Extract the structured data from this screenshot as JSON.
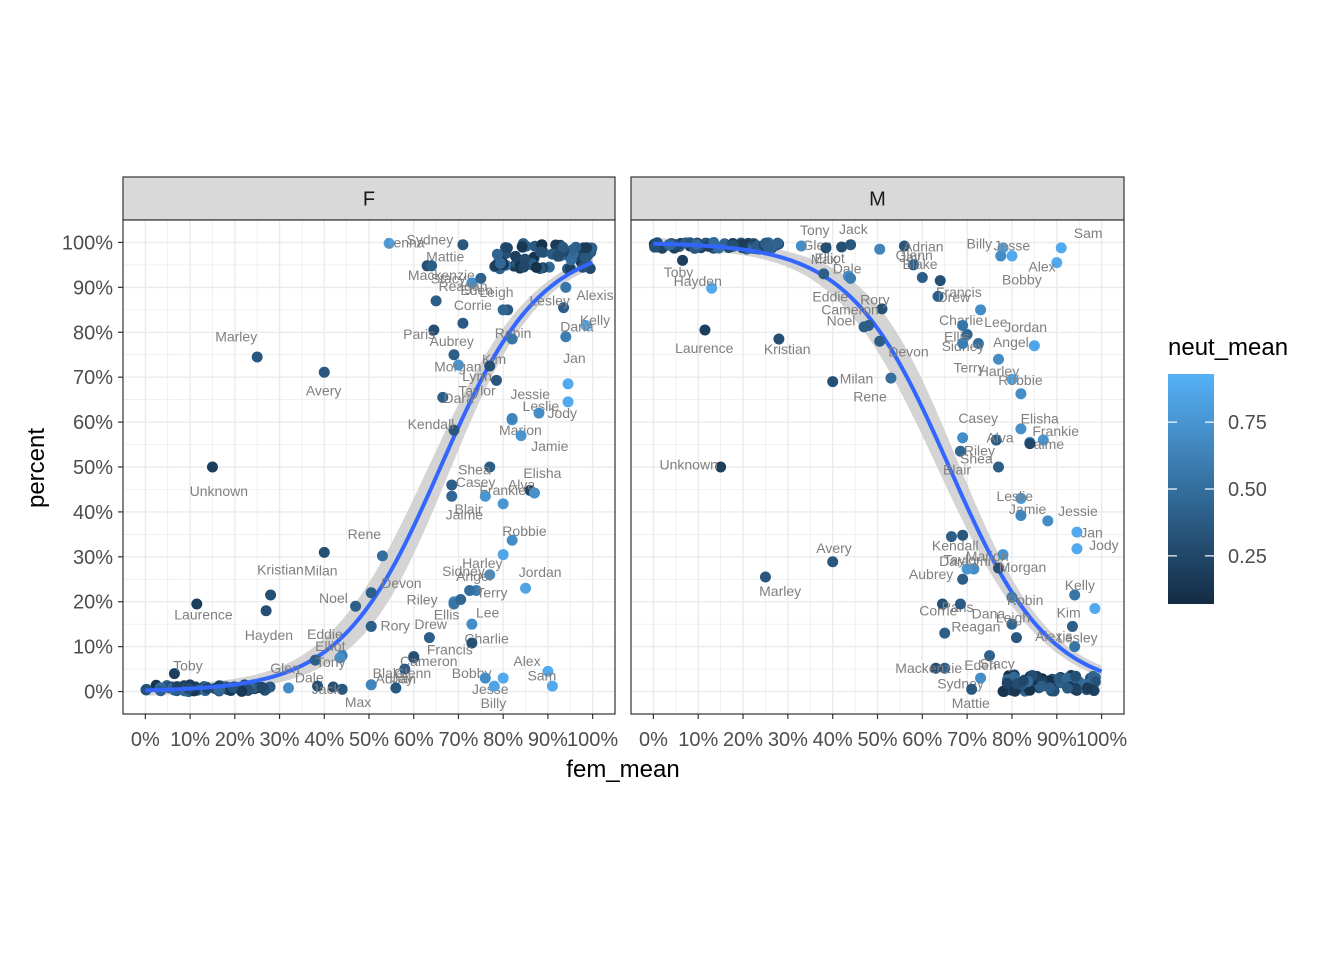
{
  "chart_data": {
    "type": "scatter",
    "x_label": "fem_mean",
    "y_label": "percent",
    "legend_title": "neut_mean",
    "legend_ticks": [
      0.25,
      0.5,
      0.75
    ],
    "legend_tick_labels": [
      "0.25",
      "0.50",
      "0.75"
    ],
    "color_range": [
      0.07,
      0.93
    ],
    "color_low": "#132B43",
    "color_high": "#56B1F7",
    "smooth_color": "#3366FF",
    "ribbon_color": "#cccccc",
    "x_ticks": [
      0,
      0.1,
      0.2,
      0.3,
      0.4,
      0.5,
      0.6,
      0.7,
      0.8,
      0.9,
      1.0
    ],
    "x_tick_labels": [
      "0%",
      "10%",
      "20%",
      "30%",
      "40%",
      "50%",
      "60%",
      "70%",
      "80%",
      "90%",
      "100%"
    ],
    "y_ticks": [
      0,
      0.1,
      0.2,
      0.3,
      0.4,
      0.5,
      0.6,
      0.7,
      0.8,
      0.9,
      1.0
    ],
    "y_tick_labels": [
      "0%",
      "10%",
      "20%",
      "30%",
      "40%",
      "50%",
      "60%",
      "70%",
      "80%",
      "90%",
      "100%"
    ],
    "xlim": [
      -0.05,
      1.05
    ],
    "ylim": [
      -0.05,
      1.05
    ],
    "grid": true,
    "legend_position": "right",
    "panels": [
      {
        "name": "F",
        "labeled_points": [
          {
            "name": "Lenna",
            "x": 0.545,
            "y": 0.998,
            "c": 0.82
          },
          {
            "name": "Mattie",
            "x": 0.71,
            "y": 0.995,
            "c": 0.35
          },
          {
            "name": "Sydney",
            "x": 0.63,
            "y": 0.948,
            "c": 0.3
          },
          {
            "name": "Mackenzie",
            "x": 0.64,
            "y": 0.948,
            "c": 0.4
          },
          {
            "name": "Stacy",
            "x": 0.73,
            "y": 0.91,
            "c": 0.7
          },
          {
            "name": "Reagan",
            "x": 0.65,
            "y": 0.87,
            "c": 0.4
          },
          {
            "name": "Eden",
            "x": 0.75,
            "y": 0.92,
            "c": 0.42
          },
          {
            "name": "Leigh",
            "x": 0.81,
            "y": 0.85,
            "c": 0.35
          },
          {
            "name": "Alexis",
            "x": 0.94,
            "y": 0.9,
            "c": 0.55
          },
          {
            "name": "Paris",
            "x": 0.645,
            "y": 0.805,
            "c": 0.3
          },
          {
            "name": "Corrie",
            "x": 0.71,
            "y": 0.82,
            "c": 0.38
          },
          {
            "name": "Robin",
            "x": 0.8,
            "y": 0.85,
            "c": 0.45
          },
          {
            "name": "Lesley",
            "x": 0.935,
            "y": 0.855,
            "c": 0.4
          },
          {
            "name": "Kelly",
            "x": 0.985,
            "y": 0.815,
            "c": 0.88
          },
          {
            "name": "Kim",
            "x": 0.82,
            "y": 0.785,
            "c": 0.55
          },
          {
            "name": "Aubrey",
            "x": 0.69,
            "y": 0.75,
            "c": 0.4
          },
          {
            "name": "Lynn",
            "x": 0.7,
            "y": 0.727,
            "c": 0.75
          },
          {
            "name": "Morgan",
            "x": 0.77,
            "y": 0.725,
            "c": 0.3
          },
          {
            "name": "Dana",
            "x": 0.94,
            "y": 0.79,
            "c": 0.6
          },
          {
            "name": "Avery",
            "x": 0.4,
            "y": 0.711,
            "c": 0.35
          },
          {
            "name": "Marley",
            "x": 0.25,
            "y": 0.745,
            "c": 0.35
          },
          {
            "name": "Dara",
            "x": 0.665,
            "y": 0.655,
            "c": 0.4
          },
          {
            "name": "Taylor",
            "x": 0.785,
            "y": 0.693,
            "c": 0.35
          },
          {
            "name": "Jan",
            "x": 0.945,
            "y": 0.685,
            "c": 0.88
          },
          {
            "name": "Marion",
            "x": 0.82,
            "y": 0.605,
            "c": 0.75
          },
          {
            "name": "Kendall",
            "x": 0.69,
            "y": 0.582,
            "c": 0.35
          },
          {
            "name": "Leslie",
            "x": 0.82,
            "y": 0.608,
            "c": 0.65
          },
          {
            "name": "Jody",
            "x": 0.945,
            "y": 0.645,
            "c": 0.88
          },
          {
            "name": "Jessie",
            "x": 0.88,
            "y": 0.62,
            "c": 0.7
          },
          {
            "name": "Jamie",
            "x": 0.84,
            "y": 0.57,
            "c": 0.75
          },
          {
            "name": "Shea",
            "x": 0.77,
            "y": 0.5,
            "c": 0.4
          },
          {
            "name": "Elisha",
            "x": 0.86,
            "y": 0.448,
            "c": 0.25
          },
          {
            "name": "Unknown",
            "x": 0.15,
            "y": 0.5,
            "c": 0.2
          },
          {
            "name": "Alva",
            "x": 0.87,
            "y": 0.442,
            "c": 0.72
          },
          {
            "name": "Casey",
            "x": 0.685,
            "y": 0.46,
            "c": 0.4
          },
          {
            "name": "Jaime",
            "x": 0.76,
            "y": 0.435,
            "c": 0.75
          },
          {
            "name": "Frankie",
            "x": 0.8,
            "y": 0.418,
            "c": 0.75
          },
          {
            "name": "Blair",
            "x": 0.685,
            "y": 0.435,
            "c": 0.45
          },
          {
            "name": "Riley",
            "x": 0.69,
            "y": 0.2,
            "c": 0.7
          },
          {
            "name": "Robbie",
            "x": 0.82,
            "y": 0.337,
            "c": 0.7
          },
          {
            "name": "Milan",
            "x": 0.4,
            "y": 0.31,
            "c": 0.3
          },
          {
            "name": "Rene",
            "x": 0.53,
            "y": 0.302,
            "c": 0.5
          },
          {
            "name": "Terry",
            "x": 0.74,
            "y": 0.225,
            "c": 0.6
          },
          {
            "name": "Harley",
            "x": 0.8,
            "y": 0.305,
            "c": 0.85
          },
          {
            "name": "Kristian",
            "x": 0.28,
            "y": 0.215,
            "c": 0.3
          },
          {
            "name": "Laurence",
            "x": 0.115,
            "y": 0.195,
            "c": 0.2
          },
          {
            "name": "Noel",
            "x": 0.47,
            "y": 0.19,
            "c": 0.4
          },
          {
            "name": "Devon",
            "x": 0.505,
            "y": 0.22,
            "c": 0.4
          },
          {
            "name": "Ellis",
            "x": 0.69,
            "y": 0.195,
            "c": 0.55
          },
          {
            "name": "Sidney",
            "x": 0.725,
            "y": 0.225,
            "c": 0.5
          },
          {
            "name": "Lee",
            "x": 0.705,
            "y": 0.205,
            "c": 0.45
          },
          {
            "name": "Angel",
            "x": 0.77,
            "y": 0.26,
            "c": 0.7
          },
          {
            "name": "Jordan",
            "x": 0.85,
            "y": 0.23,
            "c": 0.85
          },
          {
            "name": "Hayden",
            "x": 0.27,
            "y": 0.18,
            "c": 0.3
          },
          {
            "name": "Elliot",
            "x": 0.44,
            "y": 0.08,
            "c": 0.6
          },
          {
            "name": "Rory",
            "x": 0.505,
            "y": 0.145,
            "c": 0.4
          },
          {
            "name": "Blake",
            "x": 0.6,
            "y": 0.078,
            "c": 0.4
          },
          {
            "name": "Drew",
            "x": 0.635,
            "y": 0.12,
            "c": 0.4
          },
          {
            "name": "Charlie",
            "x": 0.73,
            "y": 0.15,
            "c": 0.7
          },
          {
            "name": "Bobby",
            "x": 0.8,
            "y": 0.03,
            "c": 0.88
          },
          {
            "name": "Toby",
            "x": 0.065,
            "y": 0.04,
            "c": 0.2
          },
          {
            "name": "Dale",
            "x": 0.38,
            "y": 0.07,
            "c": 0.4
          },
          {
            "name": "Eddie",
            "x": 0.435,
            "y": 0.075,
            "c": 0.7
          },
          {
            "name": "Cameron",
            "x": 0.6,
            "y": 0.075,
            "c": 0.3
          },
          {
            "name": "Francis",
            "x": 0.73,
            "y": 0.108,
            "c": 0.3
          },
          {
            "name": "Tony",
            "x": 0.385,
            "y": 0.012,
            "c": 0.3
          },
          {
            "name": "Jesse",
            "x": 0.76,
            "y": 0.03,
            "c": 0.7
          },
          {
            "name": "Alex",
            "x": 0.9,
            "y": 0.045,
            "c": 0.88
          },
          {
            "name": "Jay",
            "x": 0.505,
            "y": 0.015,
            "c": 0.65
          },
          {
            "name": "Adrian",
            "x": 0.58,
            "y": 0.05,
            "c": 0.4
          },
          {
            "name": "Glen",
            "x": 0.32,
            "y": 0.008,
            "c": 0.7
          },
          {
            "name": "Max",
            "x": 0.42,
            "y": 0.01,
            "c": 0.3
          },
          {
            "name": "Jack",
            "x": 0.44,
            "y": 0.005,
            "c": 0.35
          },
          {
            "name": "Glenn",
            "x": 0.56,
            "y": 0.008,
            "c": 0.35
          },
          {
            "name": "Billy",
            "x": 0.78,
            "y": 0.012,
            "c": 0.85
          },
          {
            "name": "Sam",
            "x": 0.91,
            "y": 0.012,
            "c": 0.88
          }
        ]
      },
      {
        "name": "M",
        "labeled_points": [
          {
            "name": "Glen",
            "x": 0.33,
            "y": 0.992,
            "c": 0.7
          },
          {
            "name": "Max",
            "x": 0.42,
            "y": 0.99,
            "c": 0.3
          },
          {
            "name": "Jack",
            "x": 0.44,
            "y": 0.995,
            "c": 0.35
          },
          {
            "name": "Glenn",
            "x": 0.56,
            "y": 0.992,
            "c": 0.35
          },
          {
            "name": "Billy",
            "x": 0.78,
            "y": 0.988,
            "c": 0.85
          },
          {
            "name": "Sam",
            "x": 0.91,
            "y": 0.988,
            "c": 0.88
          },
          {
            "name": "Toby",
            "x": 0.065,
            "y": 0.96,
            "c": 0.2
          },
          {
            "name": "Tony",
            "x": 0.385,
            "y": 0.988,
            "c": 0.3
          },
          {
            "name": "Jay",
            "x": 0.505,
            "y": 0.985,
            "c": 0.65
          },
          {
            "name": "Alex",
            "x": 0.9,
            "y": 0.955,
            "c": 0.88
          },
          {
            "name": "Adrian",
            "x": 0.58,
            "y": 0.95,
            "c": 0.4
          },
          {
            "name": "Bobby",
            "x": 0.8,
            "y": 0.97,
            "c": 0.88
          },
          {
            "name": "Hayden",
            "x": 0.13,
            "y": 0.898,
            "c": 0.88
          },
          {
            "name": "Dale",
            "x": 0.38,
            "y": 0.93,
            "c": 0.4
          },
          {
            "name": "Eddie",
            "x": 0.435,
            "y": 0.925,
            "c": 0.7
          },
          {
            "name": "Blake",
            "x": 0.6,
            "y": 0.922,
            "c": 0.4
          },
          {
            "name": "Francis",
            "x": 0.64,
            "y": 0.915,
            "c": 0.3
          },
          {
            "name": "Cameron",
            "x": 0.51,
            "y": 0.852,
            "c": 0.3
          },
          {
            "name": "Jesse",
            "x": 0.775,
            "y": 0.97,
            "c": 0.7
          },
          {
            "name": "Laurence",
            "x": 0.115,
            "y": 0.805,
            "c": 0.2
          },
          {
            "name": "Elliot",
            "x": 0.44,
            "y": 0.92,
            "c": 0.6
          },
          {
            "name": "Drew",
            "x": 0.635,
            "y": 0.88,
            "c": 0.4
          },
          {
            "name": "Charlie",
            "x": 0.73,
            "y": 0.85,
            "c": 0.7
          },
          {
            "name": "Rory",
            "x": 0.48,
            "y": 0.815,
            "c": 0.4
          },
          {
            "name": "Kristian",
            "x": 0.28,
            "y": 0.785,
            "c": 0.3
          },
          {
            "name": "Noel",
            "x": 0.47,
            "y": 0.812,
            "c": 0.4
          },
          {
            "name": "Lee",
            "x": 0.7,
            "y": 0.795,
            "c": 0.45
          },
          {
            "name": "Ellis",
            "x": 0.69,
            "y": 0.815,
            "c": 0.55
          },
          {
            "name": "Jordan",
            "x": 0.85,
            "y": 0.77,
            "c": 0.85
          },
          {
            "name": "Devon",
            "x": 0.505,
            "y": 0.78,
            "c": 0.4
          },
          {
            "name": "Sidney",
            "x": 0.725,
            "y": 0.775,
            "c": 0.5
          },
          {
            "name": "Angel",
            "x": 0.77,
            "y": 0.74,
            "c": 0.7
          },
          {
            "name": "Terry",
            "x": 0.69,
            "y": 0.775,
            "c": 0.6
          },
          {
            "name": "Harley",
            "x": 0.8,
            "y": 0.695,
            "c": 0.85
          },
          {
            "name": "Milan",
            "x": 0.4,
            "y": 0.69,
            "c": 0.3
          },
          {
            "name": "Rene",
            "x": 0.53,
            "y": 0.698,
            "c": 0.5
          },
          {
            "name": "Robbie",
            "x": 0.82,
            "y": 0.663,
            "c": 0.7
          },
          {
            "name": "Riley",
            "x": 0.69,
            "y": 0.565,
            "c": 0.7
          },
          {
            "name": "Unknown",
            "x": 0.15,
            "y": 0.5,
            "c": 0.2
          },
          {
            "name": "Frankie",
            "x": 0.87,
            "y": 0.56,
            "c": 0.75
          },
          {
            "name": "Blair",
            "x": 0.685,
            "y": 0.535,
            "c": 0.45
          },
          {
            "name": "Casey",
            "x": 0.765,
            "y": 0.56,
            "c": 0.4
          },
          {
            "name": "Jaime",
            "x": 0.84,
            "y": 0.555,
            "c": 0.75
          },
          {
            "name": "Alva",
            "x": 0.82,
            "y": 0.585,
            "c": 0.72
          },
          {
            "name": "Elisha",
            "x": 0.84,
            "y": 0.552,
            "c": 0.25
          },
          {
            "name": "Jamie",
            "x": 0.82,
            "y": 0.43,
            "c": 0.75
          },
          {
            "name": "Shea",
            "x": 0.77,
            "y": 0.5,
            "c": 0.4
          },
          {
            "name": "Jessie",
            "x": 0.88,
            "y": 0.38,
            "c": 0.7
          },
          {
            "name": "Kendall",
            "x": 0.69,
            "y": 0.348,
            "c": 0.35
          },
          {
            "name": "Leslie",
            "x": 0.82,
            "y": 0.392,
            "c": 0.65
          },
          {
            "name": "Jody",
            "x": 0.945,
            "y": 0.355,
            "c": 0.88
          },
          {
            "name": "Marion",
            "x": 0.78,
            "y": 0.305,
            "c": 0.75
          },
          {
            "name": "Jan",
            "x": 0.945,
            "y": 0.318,
            "c": 0.88
          },
          {
            "name": "Dara",
            "x": 0.665,
            "y": 0.345,
            "c": 0.4
          },
          {
            "name": "Taylor",
            "x": 0.715,
            "y": 0.273,
            "c": 0.7
          },
          {
            "name": "Morgan",
            "x": 0.77,
            "y": 0.275,
            "c": 0.3
          },
          {
            "name": "Dana",
            "x": 0.8,
            "y": 0.21,
            "c": 0.6
          },
          {
            "name": "Avery",
            "x": 0.4,
            "y": 0.289,
            "c": 0.35
          },
          {
            "name": "Marley",
            "x": 0.25,
            "y": 0.255,
            "c": 0.35
          },
          {
            "name": "Aubrey",
            "x": 0.69,
            "y": 0.25,
            "c": 0.4
          },
          {
            "name": "Lynn",
            "x": 0.7,
            "y": 0.273,
            "c": 0.75
          },
          {
            "name": "Kim",
            "x": 0.94,
            "y": 0.215,
            "c": 0.55
          },
          {
            "name": "Kelly",
            "x": 0.985,
            "y": 0.185,
            "c": 0.88
          },
          {
            "name": "Paris",
            "x": 0.645,
            "y": 0.195,
            "c": 0.3
          },
          {
            "name": "Corrie",
            "x": 0.685,
            "y": 0.195,
            "c": 0.38
          },
          {
            "name": "Robin",
            "x": 0.8,
            "y": 0.15,
            "c": 0.45
          },
          {
            "name": "Lesley",
            "x": 0.935,
            "y": 0.145,
            "c": 0.4
          },
          {
            "name": "Alexis",
            "x": 0.94,
            "y": 0.1,
            "c": 0.55
          },
          {
            "name": "Reagan",
            "x": 0.65,
            "y": 0.13,
            "c": 0.4
          },
          {
            "name": "Eden",
            "x": 0.75,
            "y": 0.08,
            "c": 0.42
          },
          {
            "name": "Leigh",
            "x": 0.81,
            "y": 0.12,
            "c": 0.35
          },
          {
            "name": "Sydney",
            "x": 0.63,
            "y": 0.052,
            "c": 0.3
          },
          {
            "name": "Mackenzie",
            "x": 0.65,
            "y": 0.052,
            "c": 0.4
          },
          {
            "name": "Stacy",
            "x": 0.73,
            "y": 0.03,
            "c": 0.7
          },
          {
            "name": "Mattie",
            "x": 0.71,
            "y": 0.005,
            "c": 0.35
          }
        ]
      }
    ]
  }
}
